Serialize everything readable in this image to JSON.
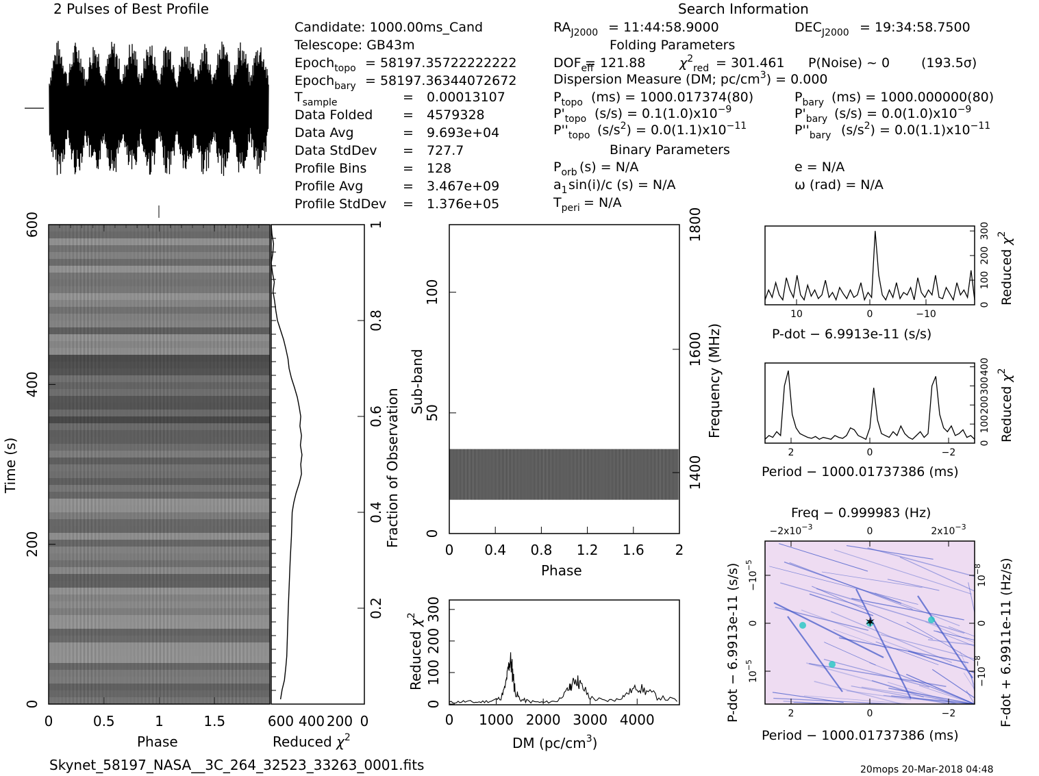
{
  "profile_title": "2 Pulses of Best Profile",
  "search_title": "Search Information",
  "candidate": "Candidate:  1000.00ms_Cand",
  "telescope": "Telescope:  GB43m",
  "epochs": {
    "topo": "= 58197.35722222222",
    "bary": "= 58197.36344072672"
  },
  "info_rows": [
    {
      "label": "Data Folded",
      "eq": "=",
      "value": "4579328"
    },
    {
      "label": "Data Avg",
      "eq": "=",
      "value": "9.693e+04"
    },
    {
      "label": "Data StdDev",
      "eq": "=",
      "value": "727.7"
    },
    {
      "label": "Profile Bins",
      "eq": "=",
      "value": "128"
    },
    {
      "label": "Profile Avg",
      "eq": "=",
      "value": "3.467e+09"
    },
    {
      "label": "Profile StdDev",
      "eq": "=",
      "value": "1.376e+05"
    }
  ],
  "tsample": {
    "eq": "=",
    "value": "0.00013107"
  },
  "search": {
    "ra": "= 11:44:58.9000",
    "dec": "= 19:34:58.7500",
    "folding_params": "Folding Parameters",
    "dof": "DOF",
    "dof_value": "= 121.88",
    "chi_value": "= 301.461",
    "pnoise": "P(Noise) ~ 0",
    "sigma": "(193.5σ)",
    "dm": "Dispersion Measure (DM; pc/cm",
    "dm_value": ") = 0.000",
    "ptopo": "(ms) =  1000.017374(80)",
    "pbary": "(ms) =  1000.000000(80)",
    "pdot_topo": "(s/s) =  0.1(1.0)x10",
    "pdot_bary": "(s/s) = 0.0(1.0)x10",
    "pddot_topo": "(s/s",
    "pddot_topo_val": ") = 0.0(1.1)x10",
    "pddot_bary_val": ") = 0.0(1.1)x10",
    "binary_params": "Binary Parameters",
    "porb": "(s) = N/A",
    "asini": "sin(i)/c (s) = N/A",
    "tperi": "= N/A",
    "ecc": "e = N/A",
    "omega": "ω (rad) = N/A"
  },
  "footer": {
    "filename": "Skynet_58197_NASA__3C_264_32523_33263_0001.fits",
    "stamp": "20mops 20-Mar-2018 04:48"
  },
  "colors": {
    "ink": "#000000",
    "pp_bg": "#eedcf2",
    "pp_line": "#3a52c8",
    "pp_hot": "#23c7c3"
  },
  "chart_data": [
    {
      "type": "line",
      "name": "profile",
      "title": "2 Pulses of Best Profile",
      "x": [
        0,
        2
      ],
      "note_style": "dense oscillating profile, 2 pulses"
    },
    {
      "type": "heatmap",
      "name": "time_phase",
      "xlabel": "Phase",
      "ylabel": "Time (s)",
      "xlim": [
        0,
        2
      ],
      "ylim": [
        0,
        600
      ],
      "xticks": [
        "0",
        "0.5",
        "1",
        "1.5"
      ],
      "yticks": [
        "0",
        "200",
        "400",
        "600"
      ],
      "right_axis_label": "Fraction of Observation",
      "right_ticks": [
        "0.2",
        "0.4",
        "0.6",
        "0.8",
        "1"
      ]
    },
    {
      "type": "line",
      "name": "reduced_chi2_time",
      "xlabel": "Reduced",
      "xticks": [
        "600",
        "400",
        "200",
        "0"
      ],
      "xlim": [
        600,
        0
      ],
      "x": [
        600,
        595,
        585,
        590,
        600,
        592,
        580,
        588,
        578,
        570,
        560,
        540,
        520,
        505,
        492,
        485,
        470,
        450,
        432,
        420,
        410,
        415,
        405,
        412,
        402,
        410,
        405,
        420,
        440,
        455,
        465,
        470,
        478,
        484,
        490,
        495,
        500,
        505,
        515,
        530,
        540
      ],
      "y": [
        1.0,
        0.98,
        0.96,
        0.94,
        0.92,
        0.9,
        0.88,
        0.86,
        0.84,
        0.82,
        0.8,
        0.78,
        0.76,
        0.74,
        0.72,
        0.7,
        0.68,
        0.66,
        0.64,
        0.62,
        0.6,
        0.58,
        0.56,
        0.54,
        0.52,
        0.5,
        0.48,
        0.46,
        0.44,
        0.42,
        0.4,
        0.35,
        0.3,
        0.25,
        0.2,
        0.15,
        0.1,
        0.08,
        0.05,
        0.03,
        0.01
      ]
    },
    {
      "type": "heatmap",
      "name": "subband_phase",
      "xlabel": "Phase",
      "ylabel": "Sub-band",
      "right_axis_label": "Frequency (MHz)",
      "xlim": [
        0,
        2
      ],
      "ylim": [
        0,
        128
      ],
      "xticks": [
        "0",
        "0.4",
        "0.8",
        "1.2",
        "1.6",
        "2"
      ],
      "yticks": [
        "0",
        "50",
        "100"
      ],
      "right_ticks": [
        "1400",
        "1600",
        "1800"
      ],
      "band": [
        14,
        35
      ]
    },
    {
      "type": "line",
      "name": "dm_curve",
      "xlabel": "DM (pc/cm",
      "ylabel": "Reduced",
      "xlim": [
        0,
        4900
      ],
      "ylim": [
        0,
        330
      ],
      "xticks": [
        "0",
        "1000",
        "2000",
        "3000",
        "4000"
      ],
      "yticks": [
        "0",
        "100",
        "200",
        "300"
      ],
      "x": [
        0,
        300,
        600,
        900,
        1100,
        1200,
        1250,
        1300,
        1350,
        1400,
        1500,
        1700,
        2000,
        2300,
        2500,
        2600,
        2700,
        2800,
        3000,
        3300,
        3600,
        3800,
        4000,
        4200,
        4500,
        4900
      ],
      "y": [
        5,
        8,
        6,
        10,
        20,
        60,
        110,
        140,
        100,
        40,
        15,
        8,
        5,
        10,
        40,
        60,
        80,
        60,
        20,
        10,
        15,
        35,
        55,
        40,
        20,
        10
      ]
    },
    {
      "type": "line",
      "name": "pdot_chi2",
      "xlabel": "P-dot − 6.9913e-11 (s/s)",
      "ylabel": "Reduced",
      "xticks": [
        "10",
        "0",
        "−10"
      ],
      "yticks": [
        "0",
        "100",
        "200",
        "300"
      ],
      "ylim": [
        0,
        320
      ],
      "y": [
        20,
        60,
        30,
        90,
        40,
        20,
        110,
        60,
        30,
        120,
        40,
        20,
        80,
        35,
        60,
        25,
        40,
        100,
        30,
        50,
        20,
        70,
        45,
        25,
        60,
        30,
        40,
        90,
        20,
        50,
        30,
        300,
        120,
        40,
        20,
        60,
        30,
        90,
        25,
        50,
        40,
        70,
        20,
        110,
        50,
        30,
        60,
        40,
        120,
        30,
        25,
        70,
        45,
        20,
        90,
        40,
        60,
        30,
        140,
        20
      ]
    },
    {
      "type": "line",
      "name": "period_chi2",
      "xlabel": "Period − 1000.01737386 (ms)",
      "ylabel": "Reduced",
      "xticks": [
        "2",
        "0",
        "−2"
      ],
      "yticks": [
        "0",
        "100",
        "200",
        "300",
        "400"
      ],
      "ylim": [
        0,
        420
      ],
      "y": [
        20,
        40,
        30,
        60,
        40,
        300,
        380,
        150,
        80,
        50,
        40,
        30,
        25,
        35,
        20,
        30,
        25,
        20,
        40,
        30,
        25,
        40,
        80,
        70,
        40,
        30,
        20,
        80,
        290,
        120,
        50,
        40,
        30,
        60,
        40,
        90,
        50,
        30,
        20,
        40,
        60,
        30,
        50,
        300,
        350,
        150,
        80,
        60,
        90,
        40,
        50,
        70,
        30,
        40,
        20
      ]
    },
    {
      "type": "heatmap",
      "name": "p_pdot",
      "title": "Freq − 0.999983 (Hz)",
      "xlabel": "Period − 1000.01737386 (ms)",
      "ylabel": "P-dot − 6.9913e-11 (s/s)",
      "right_axis_label": "F-dot + 6.9911e-11 (Hz/s)",
      "xticks": [
        "2",
        "0",
        "−2"
      ],
      "top_ticks": [
        "−2x10",
        "0",
        "2x10"
      ],
      "yticks": [
        "−10",
        "0",
        "10"
      ],
      "right_ticks": [
        "10",
        "0",
        "−10"
      ]
    }
  ]
}
